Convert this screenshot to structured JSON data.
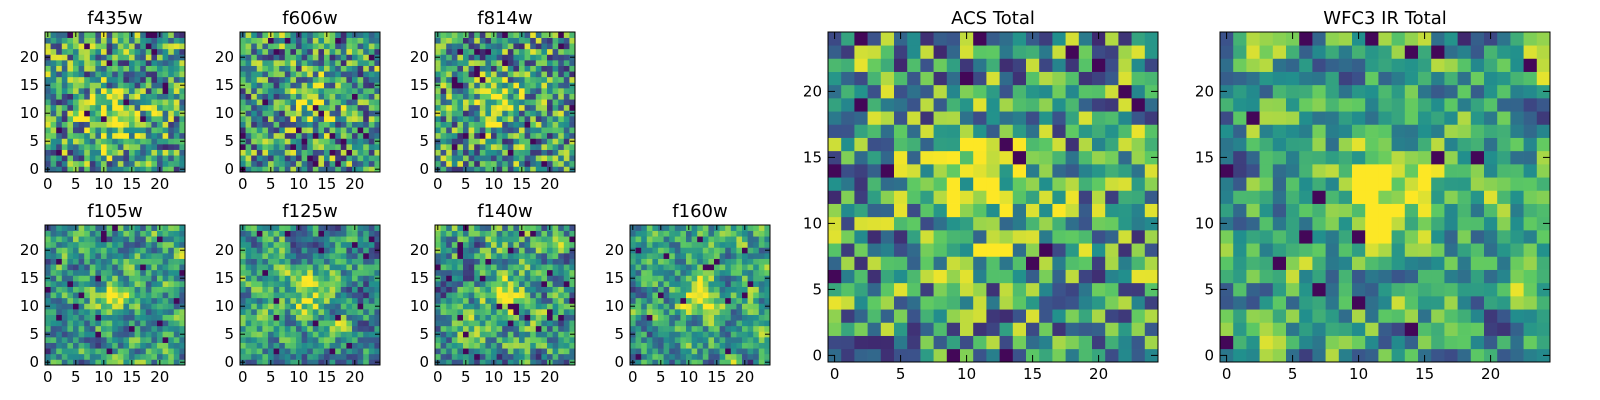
{
  "figure": {
    "colormap": "viridis",
    "colormap_stops": [
      "#440154",
      "#3b528b",
      "#21908d",
      "#5dc963",
      "#fde725"
    ],
    "frame_color": "#000000"
  },
  "chart_data": [
    {
      "type": "heatmap",
      "title": "f435w",
      "size": 25,
      "xlim": [
        -0.5,
        24.5
      ],
      "ylim": [
        -0.5,
        24.5
      ],
      "x_ticks": [
        0,
        5,
        10,
        15,
        20
      ],
      "y_ticks": [
        0,
        5,
        10,
        15,
        20
      ],
      "x_tick_labels": [
        "0",
        "5",
        "10",
        "15",
        "20"
      ],
      "y_tick_labels": [
        "0",
        "5",
        "10",
        "15",
        "20"
      ],
      "pattern": {
        "seed": 11,
        "smooth": 0,
        "blob": [
          12,
          9,
          3.5,
          0.35
        ]
      }
    },
    {
      "type": "heatmap",
      "title": "f606w",
      "size": 25,
      "xlim": [
        -0.5,
        24.5
      ],
      "ylim": [
        -0.5,
        24.5
      ],
      "x_ticks": [
        0,
        5,
        10,
        15,
        20
      ],
      "y_ticks": [
        0,
        5,
        10,
        15,
        20
      ],
      "x_tick_labels": [
        "0",
        "5",
        "10",
        "15",
        "20"
      ],
      "y_tick_labels": [
        "0",
        "5",
        "10",
        "15",
        "20"
      ],
      "pattern": {
        "seed": 23,
        "smooth": 0,
        "blob": [
          12,
          12,
          2.5,
          0.35
        ]
      }
    },
    {
      "type": "heatmap",
      "title": "f814w",
      "size": 25,
      "xlim": [
        -0.5,
        24.5
      ],
      "ylim": [
        -0.5,
        24.5
      ],
      "x_ticks": [
        0,
        5,
        10,
        15,
        20
      ],
      "y_ticks": [
        0,
        5,
        10,
        15,
        20
      ],
      "x_tick_labels": [
        "0",
        "5",
        "10",
        "15",
        "20"
      ],
      "y_tick_labels": [
        "0",
        "5",
        "10",
        "15",
        "20"
      ],
      "pattern": {
        "seed": 37,
        "smooth": 0,
        "blob": [
          11,
          12,
          2.5,
          0.35
        ]
      }
    },
    {
      "type": "heatmap",
      "title": "f105w",
      "size": 25,
      "xlim": [
        -0.5,
        24.5
      ],
      "ylim": [
        -0.5,
        24.5
      ],
      "x_ticks": [
        0,
        5,
        10,
        15,
        20
      ],
      "y_ticks": [
        0,
        5,
        10,
        15,
        20
      ],
      "x_tick_labels": [
        "0",
        "5",
        "10",
        "15",
        "20"
      ],
      "y_tick_labels": [
        "0",
        "5",
        "10",
        "15",
        "20"
      ],
      "pattern": {
        "seed": 41,
        "smooth": 1,
        "blob": [
          12,
          12,
          2.5,
          0.4
        ]
      }
    },
    {
      "type": "heatmap",
      "title": "f125w",
      "size": 25,
      "xlim": [
        -0.5,
        24.5
      ],
      "ylim": [
        -0.5,
        24.5
      ],
      "x_ticks": [
        0,
        5,
        10,
        15,
        20
      ],
      "y_ticks": [
        0,
        5,
        10,
        15,
        20
      ],
      "x_tick_labels": [
        "0",
        "5",
        "10",
        "15",
        "20"
      ],
      "y_tick_labels": [
        "0",
        "5",
        "10",
        "15",
        "20"
      ],
      "pattern": {
        "seed": 53,
        "smooth": 1,
        "blob": [
          12,
          12,
          3,
          0.3
        ]
      }
    },
    {
      "type": "heatmap",
      "title": "f140w",
      "size": 25,
      "xlim": [
        -0.5,
        24.5
      ],
      "ylim": [
        -0.5,
        24.5
      ],
      "x_ticks": [
        0,
        5,
        10,
        15,
        20
      ],
      "y_ticks": [
        0,
        5,
        10,
        15,
        20
      ],
      "x_tick_labels": [
        "0",
        "5",
        "10",
        "15",
        "20"
      ],
      "y_tick_labels": [
        "0",
        "5",
        "10",
        "15",
        "20"
      ],
      "pattern": {
        "seed": 67,
        "smooth": 1,
        "blob": [
          12,
          12,
          2.5,
          0.4
        ]
      }
    },
    {
      "type": "heatmap",
      "title": "f160w",
      "size": 25,
      "xlim": [
        -0.5,
        24.5
      ],
      "ylim": [
        -0.5,
        24.5
      ],
      "x_ticks": [
        0,
        5,
        10,
        15,
        20
      ],
      "y_ticks": [
        0,
        5,
        10,
        15,
        20
      ],
      "x_tick_labels": [
        "0",
        "5",
        "10",
        "15",
        "20"
      ],
      "y_tick_labels": [
        "0",
        "5",
        "10",
        "15",
        "20"
      ],
      "pattern": {
        "seed": 79,
        "smooth": 1,
        "blob": [
          12,
          12,
          2.5,
          0.45
        ]
      }
    },
    {
      "type": "heatmap",
      "title": "ACS Total",
      "size": 25,
      "xlim": [
        -0.5,
        24.5
      ],
      "ylim": [
        -0.5,
        24.5
      ],
      "x_ticks": [
        0,
        5,
        10,
        15,
        20
      ],
      "y_ticks": [
        0,
        5,
        10,
        15,
        20
      ],
      "x_tick_labels": [
        "0",
        "5",
        "10",
        "15",
        "20"
      ],
      "y_tick_labels": [
        "0",
        "5",
        "10",
        "15",
        "20"
      ],
      "pattern": {
        "seed": 97,
        "smooth": 0,
        "blob": [
          11,
          13,
          3,
          0.35
        ]
      }
    },
    {
      "type": "heatmap",
      "title": "WFC3 IR Total",
      "size": 25,
      "xlim": [
        -0.5,
        24.5
      ],
      "ylim": [
        -0.5,
        24.5
      ],
      "x_ticks": [
        0,
        5,
        10,
        15,
        20
      ],
      "y_ticks": [
        0,
        5,
        10,
        15,
        20
      ],
      "x_tick_labels": [
        "0",
        "5",
        "10",
        "15",
        "20"
      ],
      "y_tick_labels": [
        "0",
        "5",
        "10",
        "15",
        "20"
      ],
      "pattern": {
        "seed": 113,
        "smooth": 1,
        "blob": [
          12,
          12,
          2.5,
          0.45
        ]
      }
    }
  ]
}
